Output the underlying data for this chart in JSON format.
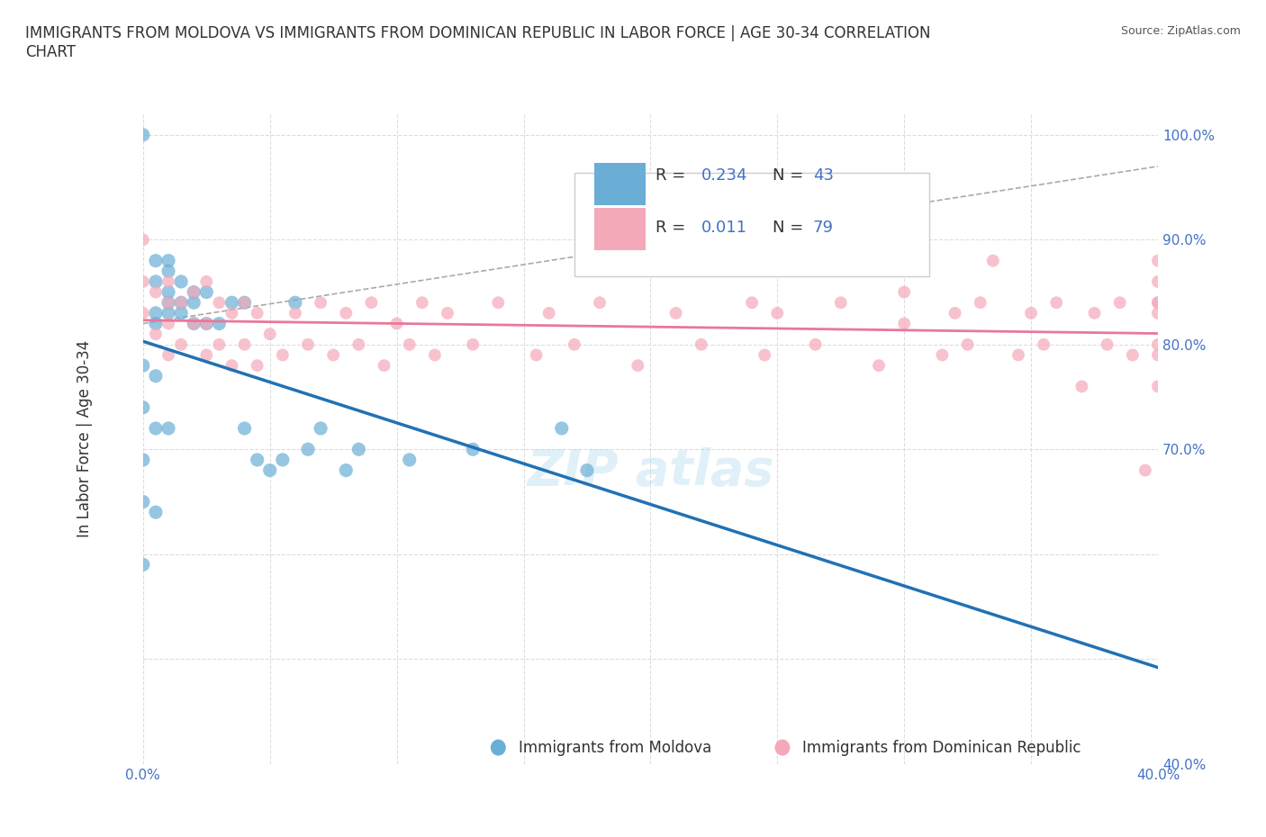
{
  "title": "IMMIGRANTS FROM MOLDOVA VS IMMIGRANTS FROM DOMINICAN REPUBLIC IN LABOR FORCE | AGE 30-34 CORRELATION\nCHART",
  "source": "Source: ZipAtlas.com",
  "xlabel": "",
  "ylabel": "In Labor Force | Age 30-34",
  "xlim": [
    0.0,
    0.4
  ],
  "ylim": [
    0.4,
    1.02
  ],
  "xticks": [
    0.0,
    0.05,
    0.1,
    0.15,
    0.2,
    0.25,
    0.3,
    0.35,
    0.4
  ],
  "xticklabels": [
    "0.0%",
    "",
    "",
    "",
    "",
    "",
    "",
    "",
    "40.0%"
  ],
  "yticks": [
    0.4,
    0.5,
    0.6,
    0.7,
    0.8,
    0.9,
    1.0
  ],
  "yticklabels": [
    "40.0%",
    "",
    "",
    "70.0%",
    "80.0%",
    "90.0%",
    "100.0%"
  ],
  "moldova_color": "#6aaed6",
  "dominican_color": "#f4a9b8",
  "moldova_R": 0.234,
  "moldova_N": 43,
  "dominican_R": 0.011,
  "dominican_N": 79,
  "moldova_line_color": "#2171b5",
  "dominican_line_color": "#e8789a",
  "diagonal_line_color": "#aaaaaa",
  "background_color": "#ffffff",
  "grid_color": "#dddddd",
  "watermark": "ZIPatlas",
  "moldova_x": [
    0.0,
    0.0,
    0.0,
    0.0,
    0.0,
    0.0,
    0.005,
    0.005,
    0.005,
    0.005,
    0.005,
    0.005,
    0.005,
    0.01,
    0.01,
    0.01,
    0.01,
    0.01,
    0.01,
    0.015,
    0.015,
    0.015,
    0.02,
    0.02,
    0.02,
    0.025,
    0.025,
    0.03,
    0.035,
    0.04,
    0.04,
    0.045,
    0.05,
    0.055,
    0.06,
    0.065,
    0.07,
    0.08,
    0.085,
    0.105,
    0.13,
    0.165,
    0.175
  ],
  "moldova_y": [
    0.59,
    0.65,
    0.69,
    0.74,
    0.78,
    1.0,
    0.64,
    0.72,
    0.77,
    0.82,
    0.83,
    0.86,
    0.88,
    0.72,
    0.83,
    0.84,
    0.85,
    0.87,
    0.88,
    0.83,
    0.84,
    0.86,
    0.82,
    0.84,
    0.85,
    0.82,
    0.85,
    0.82,
    0.84,
    0.72,
    0.84,
    0.69,
    0.68,
    0.69,
    0.84,
    0.7,
    0.72,
    0.68,
    0.7,
    0.69,
    0.7,
    0.72,
    0.68
  ],
  "dominican_x": [
    0.0,
    0.0,
    0.0,
    0.005,
    0.005,
    0.01,
    0.01,
    0.01,
    0.01,
    0.015,
    0.015,
    0.02,
    0.02,
    0.025,
    0.025,
    0.025,
    0.03,
    0.03,
    0.035,
    0.035,
    0.04,
    0.04,
    0.045,
    0.045,
    0.05,
    0.055,
    0.06,
    0.065,
    0.07,
    0.075,
    0.08,
    0.085,
    0.09,
    0.095,
    0.1,
    0.105,
    0.11,
    0.115,
    0.12,
    0.13,
    0.14,
    0.155,
    0.16,
    0.17,
    0.18,
    0.195,
    0.21,
    0.22,
    0.24,
    0.245,
    0.25,
    0.265,
    0.275,
    0.29,
    0.3,
    0.3,
    0.315,
    0.32,
    0.325,
    0.33,
    0.335,
    0.345,
    0.35,
    0.355,
    0.36,
    0.37,
    0.375,
    0.38,
    0.385,
    0.39,
    0.395,
    0.4,
    0.4,
    0.4,
    0.4,
    0.4,
    0.4,
    0.4,
    0.4
  ],
  "dominican_y": [
    0.83,
    0.86,
    0.9,
    0.81,
    0.85,
    0.79,
    0.82,
    0.84,
    0.86,
    0.8,
    0.84,
    0.82,
    0.85,
    0.79,
    0.82,
    0.86,
    0.8,
    0.84,
    0.78,
    0.83,
    0.8,
    0.84,
    0.78,
    0.83,
    0.81,
    0.79,
    0.83,
    0.8,
    0.84,
    0.79,
    0.83,
    0.8,
    0.84,
    0.78,
    0.82,
    0.8,
    0.84,
    0.79,
    0.83,
    0.8,
    0.84,
    0.79,
    0.83,
    0.8,
    0.84,
    0.78,
    0.83,
    0.8,
    0.84,
    0.79,
    0.83,
    0.8,
    0.84,
    0.78,
    0.82,
    0.85,
    0.79,
    0.83,
    0.8,
    0.84,
    0.88,
    0.79,
    0.83,
    0.8,
    0.84,
    0.76,
    0.83,
    0.8,
    0.84,
    0.79,
    0.68,
    0.84,
    0.86,
    0.88,
    0.76,
    0.83,
    0.8,
    0.84,
    0.79
  ]
}
